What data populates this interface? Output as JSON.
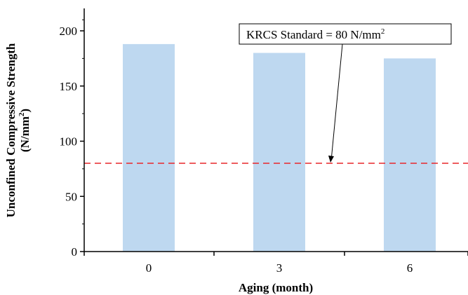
{
  "chart_data": {
    "type": "bar",
    "categories": [
      "0",
      "3",
      "6"
    ],
    "values": [
      188,
      180,
      175
    ],
    "xlabel": "Aging (month)",
    "ylabel_line1": "Unconfined Compressive Strength",
    "ylabel_line2": "(N/mm",
    "ylabel_line2_sup": "2",
    "ylabel_line2_end": ")",
    "ylim": [
      0,
      220
    ],
    "yticks": [
      0,
      50,
      100,
      150,
      200
    ],
    "ytick_labels": [
      "0",
      "50",
      "100",
      "150",
      "200"
    ],
    "reference_line": {
      "value": 80,
      "style": "dashed",
      "color": "#e8262a"
    },
    "annotation": {
      "text": "KRCS Standard = 80 N/mm",
      "sup": "2",
      "points_to_value": 80
    },
    "bar_color": "#bed8f0",
    "grid": false,
    "legend": "none"
  }
}
